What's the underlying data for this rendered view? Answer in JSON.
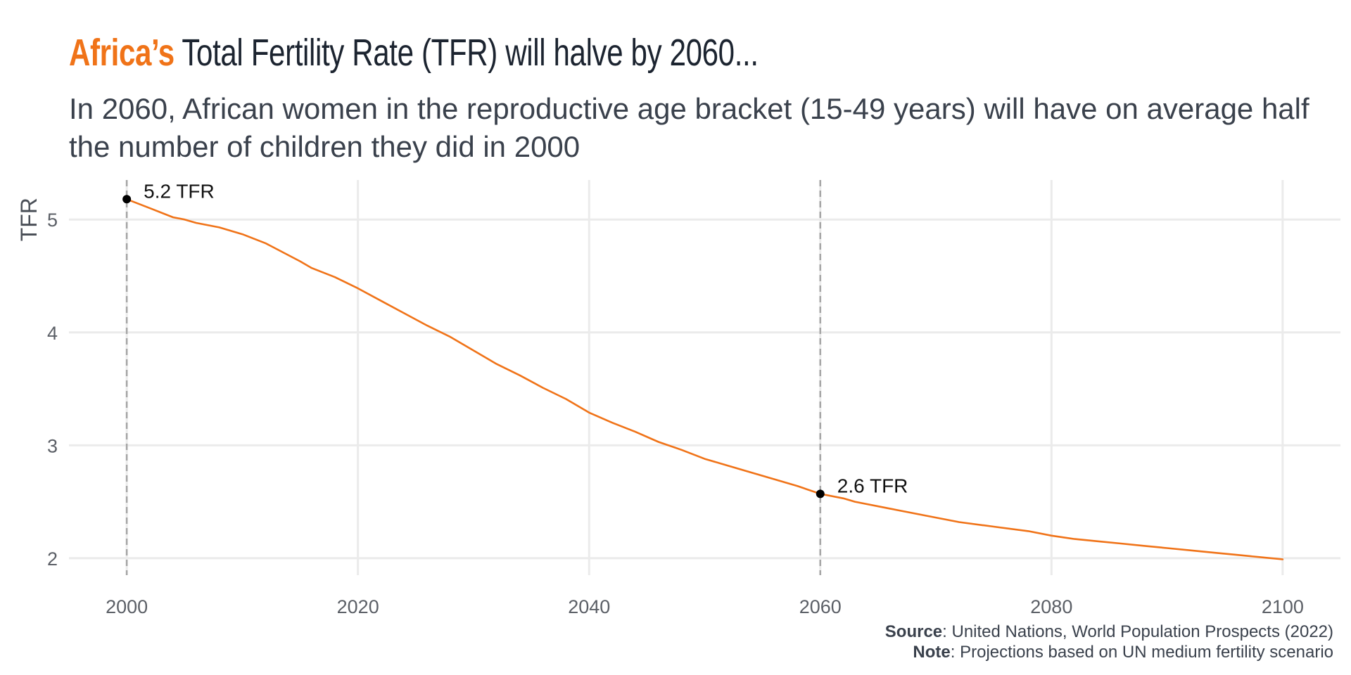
{
  "title": {
    "accent": "Africa’s",
    "rest": " Total Fertility Rate (TFR) will halve by 2060..."
  },
  "subtitle": "In 2060, African women in the reproductive age bracket (15-49 years) will have on average half the number of children they did in 2000",
  "footer": {
    "source_label": "Source",
    "source_text": ": United Nations, World Population Prospects (2022)",
    "note_label": "Note",
    "note_text": ": Projections based on UN medium fertility scenario"
  },
  "colors": {
    "line": "#f07318",
    "grid": "#ebebeb",
    "refline": "#a6a6a6",
    "point": "#000000"
  },
  "chart_data": {
    "type": "line",
    "ylabel": "TFR",
    "xlabel": "",
    "xlim": [
      1995,
      2105
    ],
    "ylim": [
      1.85,
      5.35
    ],
    "xticks": [
      2000,
      2020,
      2040,
      2060,
      2080,
      2100
    ],
    "yticks": [
      2,
      3,
      4,
      5
    ],
    "grid": true,
    "reference_lines_x": [
      2000,
      2060
    ],
    "series": [
      {
        "x": [
          2000,
          2002,
          2004,
          2005,
          2006,
          2008,
          2010,
          2012,
          2015,
          2016,
          2018,
          2020,
          2022,
          2024,
          2026,
          2028,
          2030,
          2032,
          2034,
          2036,
          2038,
          2040,
          2042,
          2044,
          2046,
          2048,
          2050,
          2052,
          2054,
          2056,
          2058,
          2060,
          2062,
          2063,
          2066,
          2070,
          2072,
          2075,
          2078,
          2080,
          2082,
          2084,
          2086,
          2088,
          2090,
          2092,
          2094,
          2096,
          2098,
          2100
        ],
        "y": [
          5.18,
          5.1,
          5.02,
          5.0,
          4.97,
          4.93,
          4.87,
          4.79,
          4.63,
          4.57,
          4.49,
          4.39,
          4.28,
          4.17,
          4.06,
          3.96,
          3.84,
          3.72,
          3.62,
          3.51,
          3.41,
          3.29,
          3.2,
          3.12,
          3.03,
          2.96,
          2.88,
          2.82,
          2.76,
          2.7,
          2.64,
          2.57,
          2.53,
          2.5,
          2.44,
          2.36,
          2.32,
          2.28,
          2.24,
          2.2,
          2.17,
          2.15,
          2.13,
          2.11,
          2.09,
          2.07,
          2.05,
          2.03,
          2.01,
          1.99
        ]
      }
    ],
    "annotations": [
      {
        "x": 2000,
        "y": 5.18,
        "label": "5.2  TFR"
      },
      {
        "x": 2060,
        "y": 2.57,
        "label": "2.6  TFR"
      }
    ]
  }
}
